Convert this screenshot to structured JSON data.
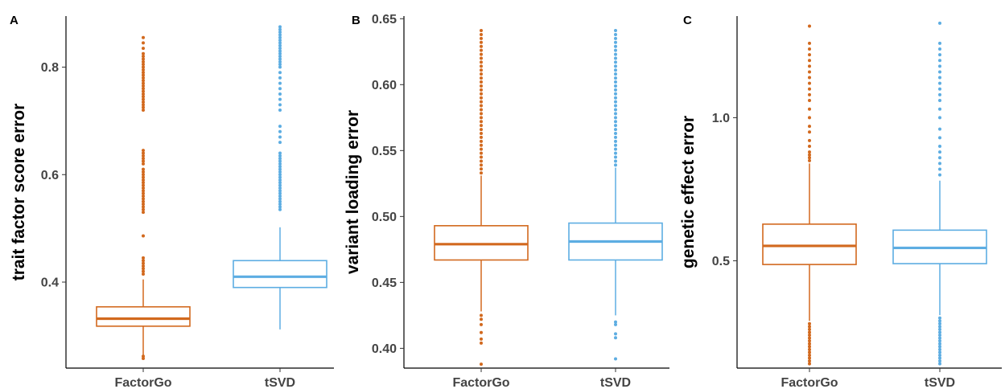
{
  "colors": {
    "FactorGo": "#D2691E",
    "tSVD": "#5DADE2"
  },
  "chart_data": [
    {
      "panel": "A",
      "type": "box",
      "ylabel": "trait factor score error",
      "categories": [
        "FactorGo",
        "tSVD"
      ],
      "yticks": [
        "0.4",
        "0.6",
        "0.8"
      ],
      "ytick_values": [
        0.4,
        0.6,
        0.8
      ],
      "ylim": [
        0.24,
        0.895
      ],
      "boxes": [
        {
          "name": "FactorGo",
          "q1": 0.318,
          "median": 0.332,
          "q3": 0.354,
          "whisker_low": 0.264,
          "whisker_high": 0.405,
          "outliers": [
            0.262,
            0.258,
            0.486,
            0.415,
            0.42,
            0.425,
            0.43,
            0.435,
            0.44,
            0.445,
            0.53,
            0.535,
            0.54,
            0.545,
            0.55,
            0.555,
            0.56,
            0.565,
            0.57,
            0.575,
            0.58,
            0.585,
            0.59,
            0.595,
            0.6,
            0.605,
            0.61,
            0.62,
            0.625,
            0.63,
            0.635,
            0.64,
            0.645,
            0.72,
            0.725,
            0.73,
            0.735,
            0.74,
            0.745,
            0.75,
            0.755,
            0.76,
            0.765,
            0.77,
            0.775,
            0.78,
            0.785,
            0.79,
            0.795,
            0.8,
            0.805,
            0.81,
            0.815,
            0.82,
            0.825,
            0.835,
            0.845,
            0.855
          ]
        },
        {
          "name": "tSVD",
          "q1": 0.39,
          "median": 0.41,
          "q3": 0.44,
          "whisker_low": 0.312,
          "whisker_high": 0.502,
          "outliers": [
            0.535,
            0.54,
            0.545,
            0.55,
            0.555,
            0.56,
            0.565,
            0.57,
            0.575,
            0.58,
            0.585,
            0.59,
            0.595,
            0.6,
            0.605,
            0.61,
            0.615,
            0.62,
            0.625,
            0.63,
            0.635,
            0.64,
            0.66,
            0.67,
            0.68,
            0.69,
            0.72,
            0.73,
            0.74,
            0.75,
            0.76,
            0.77,
            0.78,
            0.79,
            0.8,
            0.805,
            0.81,
            0.815,
            0.82,
            0.825,
            0.83,
            0.835,
            0.84,
            0.845,
            0.85,
            0.855,
            0.86,
            0.865,
            0.87,
            0.875
          ]
        }
      ]
    },
    {
      "panel": "B",
      "type": "box",
      "ylabel": "variant loading error",
      "categories": [
        "FactorGo",
        "tSVD"
      ],
      "yticks": [
        "0.40",
        "0.45",
        "0.50",
        "0.55",
        "0.60",
        "0.65"
      ],
      "ytick_values": [
        0.4,
        0.45,
        0.5,
        0.55,
        0.6,
        0.65
      ],
      "ylim": [
        0.385,
        0.652
      ],
      "boxes": [
        {
          "name": "FactorGo",
          "q1": 0.467,
          "median": 0.479,
          "q3": 0.493,
          "whisker_low": 0.428,
          "whisker_high": 0.531,
          "outliers": [
            0.388,
            0.404,
            0.407,
            0.412,
            0.418,
            0.422,
            0.425,
            0.533,
            0.536,
            0.539,
            0.542,
            0.545,
            0.548,
            0.551,
            0.554,
            0.557,
            0.56,
            0.563,
            0.566,
            0.569,
            0.572,
            0.575,
            0.578,
            0.581,
            0.584,
            0.587,
            0.59,
            0.593,
            0.596,
            0.599,
            0.602,
            0.605,
            0.608,
            0.611,
            0.614,
            0.617,
            0.62,
            0.623,
            0.626,
            0.629,
            0.632,
            0.635,
            0.638,
            0.641
          ]
        },
        {
          "name": "tSVD",
          "q1": 0.467,
          "median": 0.481,
          "q3": 0.495,
          "whisker_low": 0.425,
          "whisker_high": 0.537,
          "outliers": [
            0.392,
            0.408,
            0.411,
            0.418,
            0.42,
            0.539,
            0.542,
            0.545,
            0.548,
            0.551,
            0.554,
            0.557,
            0.56,
            0.563,
            0.566,
            0.569,
            0.572,
            0.575,
            0.578,
            0.581,
            0.584,
            0.587,
            0.59,
            0.593,
            0.596,
            0.599,
            0.602,
            0.605,
            0.608,
            0.611,
            0.614,
            0.617,
            0.62,
            0.623,
            0.626,
            0.629,
            0.632,
            0.635,
            0.638,
            0.641
          ]
        }
      ]
    },
    {
      "panel": "C",
      "type": "box",
      "ylabel": "genetic effect error",
      "categories": [
        "FactorGo",
        "tSVD"
      ],
      "yticks": [
        "0.5",
        "1.0"
      ],
      "ytick_values": [
        0.5,
        1.0
      ],
      "ylim": [
        0.125,
        1.355
      ],
      "boxes": [
        {
          "name": "FactorGo",
          "q1": 0.487,
          "median": 0.552,
          "q3": 0.628,
          "whisker_low": 0.29,
          "whisker_high": 0.84,
          "outliers": [
            0.14,
            0.15,
            0.16,
            0.17,
            0.18,
            0.19,
            0.2,
            0.21,
            0.22,
            0.23,
            0.24,
            0.25,
            0.26,
            0.27,
            0.28,
            0.85,
            0.86,
            0.87,
            0.88,
            0.9,
            0.92,
            0.95,
            0.97,
            1.0,
            1.03,
            1.06,
            1.08,
            1.1,
            1.12,
            1.14,
            1.16,
            1.18,
            1.2,
            1.22,
            1.24,
            1.26,
            1.32
          ]
        },
        {
          "name": "tSVD",
          "q1": 0.49,
          "median": 0.545,
          "q3": 0.607,
          "whisker_low": 0.31,
          "whisker_high": 0.78,
          "outliers": [
            0.14,
            0.15,
            0.16,
            0.17,
            0.18,
            0.19,
            0.2,
            0.21,
            0.22,
            0.23,
            0.24,
            0.25,
            0.26,
            0.27,
            0.28,
            0.29,
            0.3,
            0.8,
            0.82,
            0.84,
            0.86,
            0.88,
            0.9,
            0.93,
            0.96,
            1.0,
            1.03,
            1.06,
            1.08,
            1.1,
            1.12,
            1.14,
            1.16,
            1.18,
            1.2,
            1.22,
            1.24,
            1.26,
            1.33
          ]
        }
      ]
    }
  ]
}
